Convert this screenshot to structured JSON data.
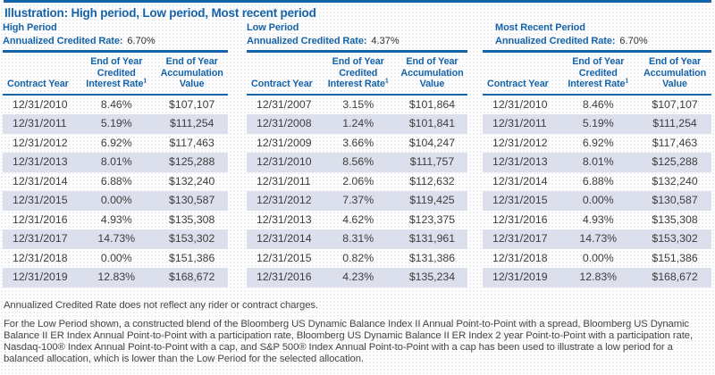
{
  "page": {
    "title": "Illustration: High period, Low period, Most recent period",
    "footnote_rate": "Annualized Credited Rate does not reflect any rider or contract charges.",
    "footnote_low_period": "For the Low Period shown, a constructed blend of the Bloomberg US Dynamic Balance Index II Annual Point-to-Point with a spread, Bloomberg US Dynamic Balance II ER Index Annual Point-to-Point with a participation rate, Bloomberg US Dynamic Balance II ER Index 2 year Point-to-Point with a participation rate, Nasdaq-100® Index Annual Point-to-Point with a cap, and S&P 500® Index Annual Point-to-Point with a cap has been used to illustrate a low period for a balanced allocation, which is lower than the Low Period for the selected allocation."
  },
  "colors": {
    "accent_blue": "#1563a9",
    "row_stripe": "#dce0ec",
    "body_text": "#3d3d3d"
  },
  "columns": [
    {
      "label": "Contract Year",
      "lines": [
        "Contract Year"
      ]
    },
    {
      "label": "End of Year Credited Interest Rate",
      "lines": [
        "End of Year",
        "Credited",
        "Interest Rate"
      ],
      "superscript": "1"
    },
    {
      "label": "End of Year Accumulation Value",
      "lines": [
        "End of Year",
        "Accumulation",
        "Value"
      ]
    }
  ],
  "sections": [
    {
      "heading": "High Period",
      "rate_label": "Annualized Credited Rate:",
      "rate_value": "6.70%",
      "rows": [
        [
          "12/31/2010",
          "8.46%",
          "$107,107"
        ],
        [
          "12/31/2011",
          "5.19%",
          "$111,254"
        ],
        [
          "12/31/2012",
          "6.92%",
          "$117,463"
        ],
        [
          "12/31/2013",
          "8.01%",
          "$125,288"
        ],
        [
          "12/31/2014",
          "6.88%",
          "$132,240"
        ],
        [
          "12/31/2015",
          "0.00%",
          "$130,587"
        ],
        [
          "12/31/2016",
          "4.93%",
          "$135,308"
        ],
        [
          "12/31/2017",
          "14.73%",
          "$153,302"
        ],
        [
          "12/31/2018",
          "0.00%",
          "$151,386"
        ],
        [
          "12/31/2019",
          "12.83%",
          "$168,672"
        ]
      ]
    },
    {
      "heading": "Low Period",
      "rate_label": "Annualized Credited Rate:",
      "rate_value": "4.37%",
      "rows": [
        [
          "12/31/2007",
          "3.15%",
          "$101,864"
        ],
        [
          "12/31/2008",
          "1.24%",
          "$101,841"
        ],
        [
          "12/31/2009",
          "3.66%",
          "$104,247"
        ],
        [
          "12/31/2010",
          "8.56%",
          "$111,757"
        ],
        [
          "12/31/2011",
          "2.06%",
          "$112,632"
        ],
        [
          "12/31/2012",
          "7.37%",
          "$119,425"
        ],
        [
          "12/31/2013",
          "4.62%",
          "$123,375"
        ],
        [
          "12/31/2014",
          "8.31%",
          "$131,961"
        ],
        [
          "12/31/2015",
          "0.82%",
          "$131,386"
        ],
        [
          "12/31/2016",
          "4.23%",
          "$135,234"
        ]
      ]
    },
    {
      "heading": "Most Recent Period",
      "rate_label": "Annualized Credited Rate:",
      "rate_value": "6.70%",
      "rows": [
        [
          "12/31/2010",
          "8.46%",
          "$107,107"
        ],
        [
          "12/31/2011",
          "5.19%",
          "$111,254"
        ],
        [
          "12/31/2012",
          "6.92%",
          "$117,463"
        ],
        [
          "12/31/2013",
          "8.01%",
          "$125,288"
        ],
        [
          "12/31/2014",
          "6.88%",
          "$132,240"
        ],
        [
          "12/31/2015",
          "0.00%",
          "$130,587"
        ],
        [
          "12/31/2016",
          "4.93%",
          "$135,308"
        ],
        [
          "12/31/2017",
          "14.73%",
          "$153,302"
        ],
        [
          "12/31/2018",
          "0.00%",
          "$151,386"
        ],
        [
          "12/31/2019",
          "12.83%",
          "$168,672"
        ]
      ]
    }
  ]
}
